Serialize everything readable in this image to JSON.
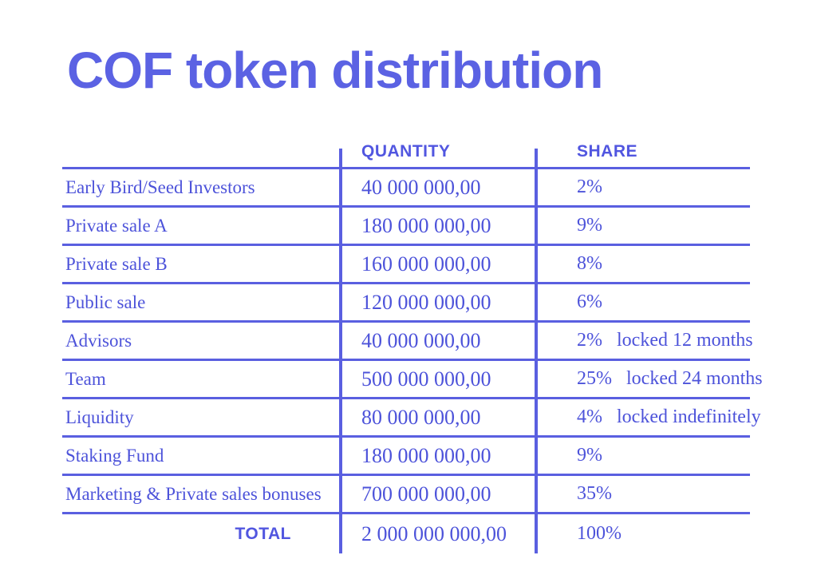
{
  "title": "COF token distribution",
  "colors": {
    "primary_line": "#5a5fe0",
    "title_text": "#5b62e3",
    "header_text": "#5156e0",
    "body_text": "#4d53da",
    "background": "#ffffff"
  },
  "table": {
    "header": {
      "quantity": "QUANTITY",
      "share": "SHARE"
    },
    "rows": [
      {
        "label": "Early Bird/Seed Investors",
        "quantity": "40 000 000,00",
        "share": "2%",
        "note": ""
      },
      {
        "label": "Private sale A",
        "quantity": "180 000 000,00",
        "share": "9%",
        "note": ""
      },
      {
        "label": "Private sale B",
        "quantity": "160 000 000,00",
        "share": "8%",
        "note": ""
      },
      {
        "label": "Public sale",
        "quantity": "120 000 000,00",
        "share": "6%",
        "note": ""
      },
      {
        "label": "Advisors",
        "quantity": "40 000 000,00",
        "share": "2%",
        "note": "locked 12 months"
      },
      {
        "label": "Team",
        "quantity": "500 000 000,00",
        "share": "25%",
        "note": "locked 24 months"
      },
      {
        "label": "Liquidity",
        "quantity": "80 000 000,00",
        "share": "4%",
        "note": "locked indefinitely"
      },
      {
        "label": "Staking Fund",
        "quantity": "180 000 000,00",
        "share": "9%",
        "note": ""
      },
      {
        "label": "Marketing & Private sales bonuses",
        "quantity": "700 000 000,00",
        "share": "35%",
        "note": ""
      }
    ],
    "total": {
      "label": "TOTAL",
      "quantity": "2 000 000 000,00",
      "share": "100%"
    }
  },
  "chart_data": {
    "type": "table",
    "title": "COF token distribution",
    "columns": [
      "",
      "QUANTITY",
      "SHARE"
    ],
    "categories": [
      "Early Bird/Seed Investors",
      "Private sale A",
      "Private sale B",
      "Public sale",
      "Advisors",
      "Team",
      "Liquidity",
      "Staking Fund",
      "Marketing & Private sales bonuses"
    ],
    "quantities": [
      40000000,
      180000000,
      160000000,
      120000000,
      40000000,
      500000000,
      80000000,
      180000000,
      700000000
    ],
    "share_percent": [
      2,
      9,
      8,
      6,
      2,
      25,
      4,
      9,
      35
    ],
    "lock_notes": [
      "",
      "",
      "",
      "",
      "locked 12 months",
      "locked 24 months",
      "locked indefinitely",
      "",
      ""
    ],
    "total_quantity": 2000000000,
    "total_share_percent": 100
  }
}
